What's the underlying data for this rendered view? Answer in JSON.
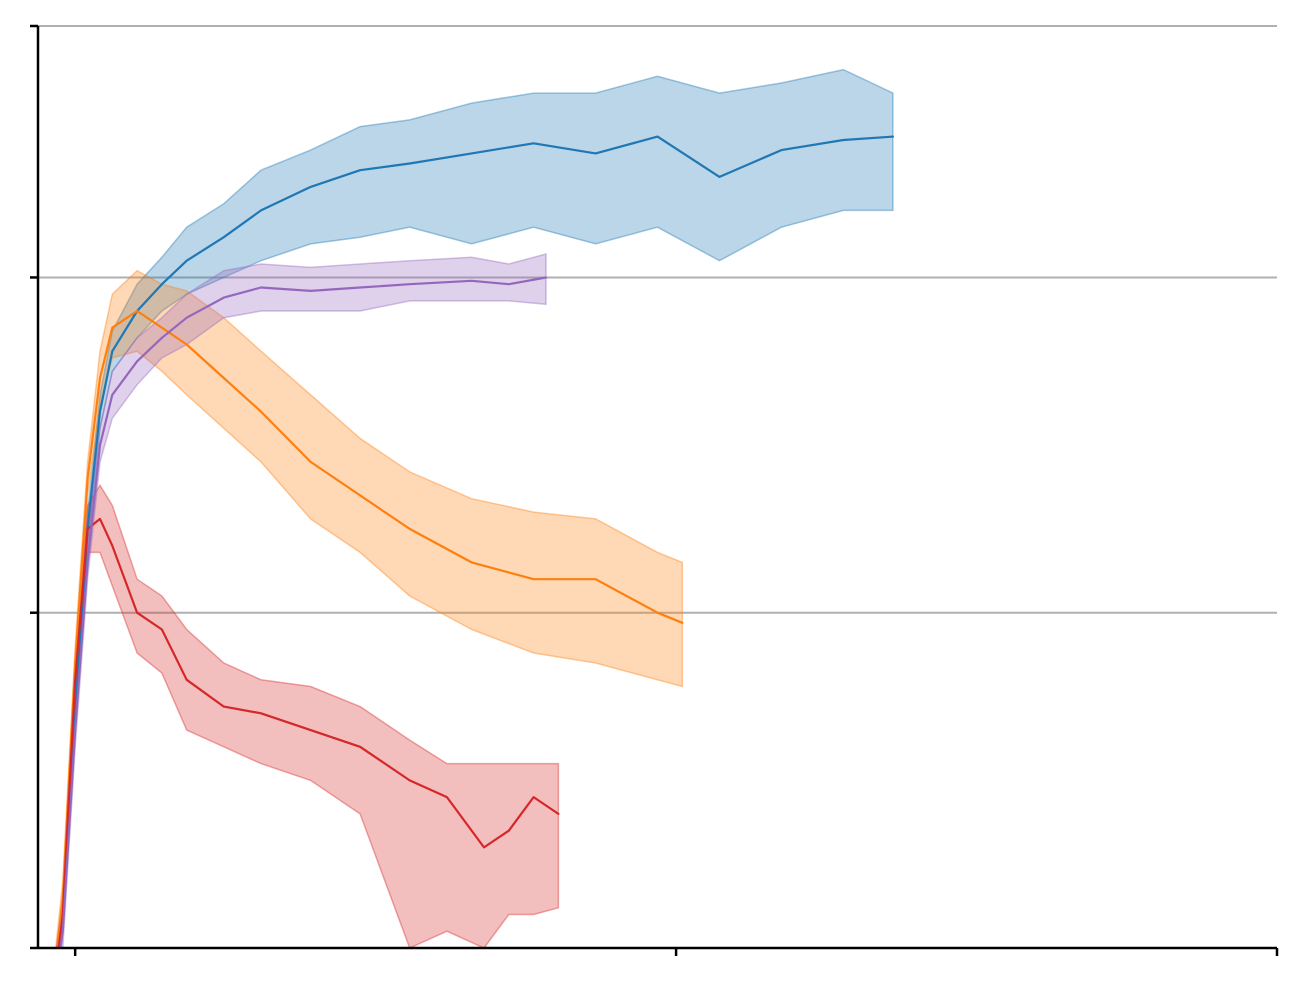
{
  "chart_data": {
    "type": "line",
    "title": "",
    "xlabel": "",
    "ylabel": "",
    "xlim": [
      0,
      100
    ],
    "ylim": [
      0,
      2.75
    ],
    "x_tick_values": [
      3,
      51.5,
      100
    ],
    "y_tick_values": [
      0,
      1,
      2,
      2.75
    ],
    "grid": "horizontal",
    "shaded_bands": true,
    "legend": "none",
    "series": [
      {
        "color": "#1f77b4",
        "x": [
          1,
          2,
          3,
          4,
          5,
          6,
          8,
          10,
          12,
          15,
          18,
          22,
          26,
          30,
          35,
          40,
          45,
          50,
          55,
          60,
          65,
          69
        ],
        "values": [
          -0.2,
          0.1,
          0.7,
          1.25,
          1.6,
          1.78,
          1.9,
          1.98,
          2.05,
          2.12,
          2.2,
          2.27,
          2.32,
          2.34,
          2.37,
          2.4,
          2.37,
          2.42,
          2.3,
          2.38,
          2.41,
          2.42
        ],
        "lower": [
          -0.25,
          0.05,
          0.65,
          1.2,
          1.55,
          1.72,
          1.82,
          1.9,
          1.95,
          2.0,
          2.05,
          2.1,
          2.12,
          2.15,
          2.1,
          2.15,
          2.1,
          2.15,
          2.05,
          2.15,
          2.2,
          2.2
        ],
        "upper": [
          -0.15,
          0.15,
          0.75,
          1.3,
          1.65,
          1.84,
          1.98,
          2.06,
          2.15,
          2.22,
          2.32,
          2.38,
          2.45,
          2.47,
          2.52,
          2.55,
          2.55,
          2.6,
          2.55,
          2.58,
          2.62,
          2.55
        ]
      },
      {
        "color": "#ff7f0e",
        "x": [
          1,
          2,
          3,
          4,
          5,
          6,
          8,
          10,
          12,
          15,
          18,
          22,
          26,
          30,
          35,
          40,
          45,
          50,
          52
        ],
        "values": [
          -0.2,
          0.15,
          0.85,
          1.4,
          1.7,
          1.85,
          1.9,
          1.85,
          1.8,
          1.7,
          1.6,
          1.45,
          1.35,
          1.25,
          1.15,
          1.1,
          1.1,
          1.0,
          0.97
        ],
        "lower": [
          -0.25,
          0.1,
          0.8,
          1.35,
          1.62,
          1.76,
          1.78,
          1.72,
          1.65,
          1.55,
          1.45,
          1.28,
          1.18,
          1.05,
          0.95,
          0.88,
          0.85,
          0.8,
          0.78
        ],
        "upper": [
          -0.15,
          0.2,
          0.9,
          1.45,
          1.78,
          1.95,
          2.02,
          1.98,
          1.96,
          1.88,
          1.78,
          1.65,
          1.52,
          1.42,
          1.34,
          1.3,
          1.28,
          1.18,
          1.15
        ]
      },
      {
        "color": "#d62728",
        "x": [
          1,
          2,
          3,
          4,
          5,
          6,
          8,
          10,
          12,
          15,
          18,
          22,
          26,
          30,
          33,
          36,
          38,
          40,
          42
        ],
        "values": [
          -0.2,
          0.1,
          0.8,
          1.25,
          1.28,
          1.2,
          1.0,
          0.95,
          0.8,
          0.72,
          0.7,
          0.65,
          0.6,
          0.5,
          0.45,
          0.3,
          0.35,
          0.45,
          0.4
        ],
        "lower": [
          -0.25,
          0.05,
          0.75,
          1.18,
          1.18,
          1.08,
          0.88,
          0.82,
          0.65,
          0.6,
          0.55,
          0.5,
          0.4,
          0.0,
          0.05,
          0.0,
          0.1,
          0.1,
          0.12
        ],
        "upper": [
          -0.15,
          0.15,
          0.85,
          1.32,
          1.38,
          1.32,
          1.1,
          1.05,
          0.95,
          0.85,
          0.8,
          0.78,
          0.72,
          0.62,
          0.55,
          0.55,
          0.55,
          0.55,
          0.55
        ]
      },
      {
        "color": "#9467bd",
        "x": [
          1,
          2,
          3,
          4,
          5,
          6,
          8,
          10,
          12,
          15,
          18,
          22,
          26,
          30,
          35,
          38,
          41
        ],
        "values": [
          -0.2,
          0.05,
          0.65,
          1.15,
          1.5,
          1.65,
          1.75,
          1.82,
          1.88,
          1.94,
          1.97,
          1.96,
          1.97,
          1.98,
          1.99,
          1.98,
          2.0
        ],
        "lower": [
          -0.25,
          0.0,
          0.6,
          1.1,
          1.45,
          1.58,
          1.68,
          1.76,
          1.8,
          1.88,
          1.9,
          1.9,
          1.9,
          1.93,
          1.93,
          1.93,
          1.92
        ],
        "upper": [
          -0.15,
          0.1,
          0.7,
          1.2,
          1.55,
          1.72,
          1.82,
          1.88,
          1.95,
          2.02,
          2.04,
          2.03,
          2.04,
          2.05,
          2.06,
          2.04,
          2.07
        ]
      }
    ]
  }
}
